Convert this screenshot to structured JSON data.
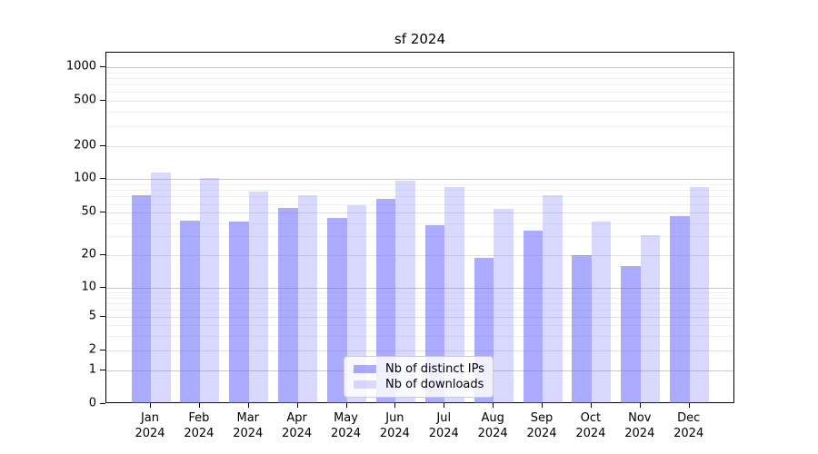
{
  "chart_data": {
    "type": "bar",
    "title": "sf 2024",
    "months": [
      "Jan",
      "Feb",
      "Mar",
      "Apr",
      "May",
      "Jun",
      "Jul",
      "Aug",
      "Sep",
      "Oct",
      "Nov",
      "Dec"
    ],
    "year": "2024",
    "series": [
      {
        "name": "Nb of distinct IPs",
        "color": "#6666ff",
        "alpha": 0.55,
        "rendered_color": "#a9aaf4",
        "values": [
          72,
          42,
          41,
          55,
          45,
          66,
          38,
          19,
          34,
          20,
          16,
          47
        ]
      },
      {
        "name": "Nb of downloads",
        "color": "#6666ff",
        "alpha": 0.25,
        "rendered_color": "#d9daf9",
        "values": [
          115,
          101,
          77,
          71,
          58,
          97,
          84,
          54,
          71,
          41,
          31,
          85
        ]
      }
    ],
    "y_ticks": [
      0,
      1,
      2,
      5,
      10,
      20,
      50,
      100,
      200,
      500,
      1000
    ],
    "y_scale": "symlog",
    "ylim": [
      0,
      1320
    ],
    "grid": true,
    "major_grid_color": "#c9c9c9",
    "labeled_grid_color": "#e2e2e2",
    "minor_grid_color": "#f0f0f0",
    "legend_position": "lower-center-inside",
    "xlabel": "",
    "ylabel": ""
  }
}
